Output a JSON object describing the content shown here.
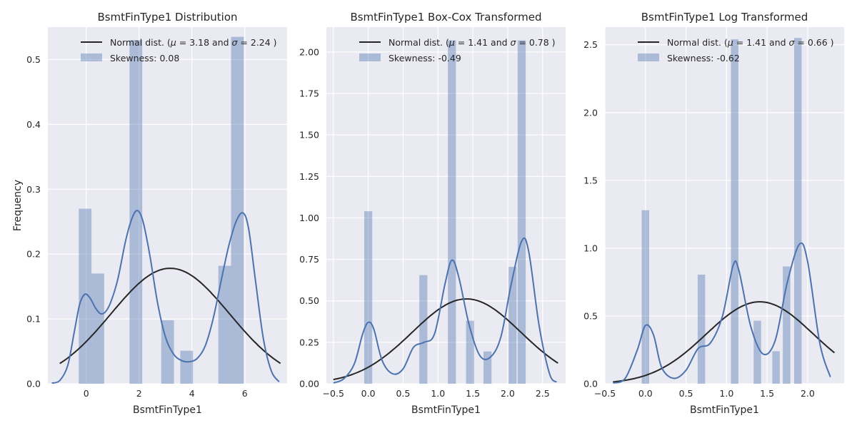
{
  "chart_data": [
    {
      "type": "bar",
      "title": "BsmtFinType1 Distribution",
      "xlabel": "BsmtFinType1",
      "ylabel": "Frequency",
      "xlim": [
        -1.45,
        7.6
      ],
      "ylim": [
        0,
        0.55
      ],
      "xticks": [
        0,
        2,
        4,
        6
      ],
      "xtick_labels": [
        "0",
        "2",
        "4",
        "6"
      ],
      "yticks": [
        0,
        0.1,
        0.2,
        0.3,
        0.4,
        0.5
      ],
      "ytick_labels": [
        "0.0",
        "0.1",
        "0.2",
        "0.3",
        "0.4",
        "0.5"
      ],
      "grid": true,
      "legend_position": "top-right",
      "bar_width": 0.48,
      "bars": [
        {
          "x": -0.04,
          "value": 0.27
        },
        {
          "x": 0.44,
          "value": 0.17
        },
        {
          "x": 1.88,
          "value": 0.53
        },
        {
          "x": 3.08,
          "value": 0.098
        },
        {
          "x": 3.8,
          "value": 0.051
        },
        {
          "x": 5.24,
          "value": 0.182
        },
        {
          "x": 5.72,
          "value": 0.535
        }
      ],
      "kde": [
        [
          -1.3,
          0.001
        ],
        [
          -1.0,
          0.005
        ],
        [
          -0.7,
          0.028
        ],
        [
          -0.45,
          0.08
        ],
        [
          -0.25,
          0.122
        ],
        [
          -0.05,
          0.138
        ],
        [
          0.15,
          0.132
        ],
        [
          0.35,
          0.117
        ],
        [
          0.55,
          0.108
        ],
        [
          0.75,
          0.112
        ],
        [
          0.95,
          0.128
        ],
        [
          1.2,
          0.162
        ],
        [
          1.5,
          0.222
        ],
        [
          1.75,
          0.257
        ],
        [
          1.95,
          0.267
        ],
        [
          2.15,
          0.25
        ],
        [
          2.4,
          0.2
        ],
        [
          2.7,
          0.125
        ],
        [
          3.0,
          0.072
        ],
        [
          3.3,
          0.046
        ],
        [
          3.6,
          0.036
        ],
        [
          3.9,
          0.034
        ],
        [
          4.2,
          0.039
        ],
        [
          4.5,
          0.058
        ],
        [
          4.8,
          0.1
        ],
        [
          5.1,
          0.158
        ],
        [
          5.4,
          0.214
        ],
        [
          5.7,
          0.253
        ],
        [
          5.95,
          0.263
        ],
        [
          6.15,
          0.238
        ],
        [
          6.4,
          0.16
        ],
        [
          6.7,
          0.07
        ],
        [
          7.0,
          0.02
        ],
        [
          7.3,
          0.003
        ]
      ],
      "normal_curve": {
        "mu": 3.18,
        "sigma": 2.24,
        "x_range": [
          -1.0,
          7.35
        ]
      },
      "legend": [
        "Normal dist. ($\\mu=$ 3.18 and $\\sigma=$ 2.24 )",
        "Skewness: 0.08"
      ]
    },
    {
      "type": "bar",
      "title": "BsmtFinType1 Box-Cox Transformed",
      "xlabel": "BsmtFinType1",
      "ylabel": "",
      "xlim": [
        -0.6,
        2.83
      ],
      "ylim": [
        0,
        2.15
      ],
      "xticks": [
        -0.5,
        0,
        0.5,
        1,
        1.5,
        2,
        2.5
      ],
      "xtick_labels": [
        "−0.5",
        "0.0",
        "0.5",
        "1.0",
        "1.5",
        "2.0",
        "2.5"
      ],
      "yticks": [
        0,
        0.25,
        0.5,
        0.75,
        1,
        1.25,
        1.5,
        1.75,
        2
      ],
      "ytick_labels": [
        "0.00",
        "0.25",
        "0.50",
        "0.75",
        "1.00",
        "1.25",
        "1.50",
        "1.75",
        "2.00"
      ],
      "grid": true,
      "legend_position": "top-right",
      "bar_width": 0.115,
      "bars": [
        {
          "x": 0.0,
          "value": 1.04
        },
        {
          "x": 0.79,
          "value": 0.655
        },
        {
          "x": 1.2,
          "value": 2.07
        },
        {
          "x": 1.46,
          "value": 0.38
        },
        {
          "x": 1.71,
          "value": 0.195
        },
        {
          "x": 2.07,
          "value": 0.705
        },
        {
          "x": 2.2,
          "value": 2.07
        }
      ],
      "kde": [
        [
          -0.5,
          0.005
        ],
        [
          -0.35,
          0.03
        ],
        [
          -0.2,
          0.12
        ],
        [
          -0.08,
          0.3
        ],
        [
          0.0,
          0.37
        ],
        [
          0.08,
          0.33
        ],
        [
          0.2,
          0.14
        ],
        [
          0.35,
          0.06
        ],
        [
          0.5,
          0.09
        ],
        [
          0.65,
          0.22
        ],
        [
          0.8,
          0.25
        ],
        [
          0.95,
          0.3
        ],
        [
          1.1,
          0.6
        ],
        [
          1.2,
          0.745
        ],
        [
          1.3,
          0.64
        ],
        [
          1.45,
          0.35
        ],
        [
          1.6,
          0.17
        ],
        [
          1.75,
          0.16
        ],
        [
          1.9,
          0.28
        ],
        [
          2.05,
          0.6
        ],
        [
          2.2,
          0.86
        ],
        [
          2.3,
          0.8
        ],
        [
          2.45,
          0.35
        ],
        [
          2.6,
          0.06
        ],
        [
          2.7,
          0.01
        ]
      ],
      "normal_curve": {
        "mu": 1.41,
        "sigma": 0.78,
        "x_range": [
          -0.5,
          2.72
        ]
      },
      "legend": [
        "Normal dist. ($\\mu=$ 1.41 and $\\sigma=$ 0.78 )",
        "Skewness: -0.49"
      ]
    },
    {
      "type": "bar",
      "title": "BsmtFinType1 Log Transformed",
      "xlabel": "BsmtFinType1",
      "ylabel": "",
      "xlim": [
        -0.5,
        2.45
      ],
      "ylim": [
        0,
        2.63
      ],
      "xticks": [
        -0.5,
        0,
        0.5,
        1,
        1.5,
        2
      ],
      "xtick_labels": [
        "−0.5",
        "0.0",
        "0.5",
        "1.0",
        "1.5",
        "2.0"
      ],
      "yticks": [
        0,
        0.5,
        1,
        1.5,
        2,
        2.5
      ],
      "ytick_labels": [
        "0.0",
        "0.5",
        "1.0",
        "1.5",
        "2.0",
        "2.5"
      ],
      "grid": true,
      "legend_position": "top-right",
      "bar_width": 0.092,
      "bars": [
        {
          "x": 0.0,
          "value": 1.28
        },
        {
          "x": 0.69,
          "value": 0.805
        },
        {
          "x": 1.1,
          "value": 2.54
        },
        {
          "x": 1.38,
          "value": 0.465
        },
        {
          "x": 1.61,
          "value": 0.24
        },
        {
          "x": 1.74,
          "value": 0.865
        },
        {
          "x": 1.88,
          "value": 2.55
        }
      ],
      "kde": [
        [
          -0.4,
          0.005
        ],
        [
          -0.25,
          0.04
        ],
        [
          -0.1,
          0.25
        ],
        [
          0.0,
          0.43
        ],
        [
          0.1,
          0.36
        ],
        [
          0.2,
          0.12
        ],
        [
          0.35,
          0.04
        ],
        [
          0.5,
          0.1
        ],
        [
          0.65,
          0.26
        ],
        [
          0.8,
          0.3
        ],
        [
          0.95,
          0.5
        ],
        [
          1.08,
          0.87
        ],
        [
          1.15,
          0.84
        ],
        [
          1.3,
          0.42
        ],
        [
          1.45,
          0.22
        ],
        [
          1.6,
          0.32
        ],
        [
          1.75,
          0.75
        ],
        [
          1.9,
          1.03
        ],
        [
          2.0,
          0.9
        ],
        [
          2.15,
          0.3
        ],
        [
          2.28,
          0.05
        ]
      ],
      "normal_curve": {
        "mu": 1.41,
        "sigma": 0.66,
        "x_range": [
          -0.4,
          2.33
        ]
      },
      "legend": [
        "Normal dist. ($\\mu=$ 1.41 and $\\sigma=$ 0.66 )",
        "Skewness: -0.62"
      ]
    }
  ]
}
